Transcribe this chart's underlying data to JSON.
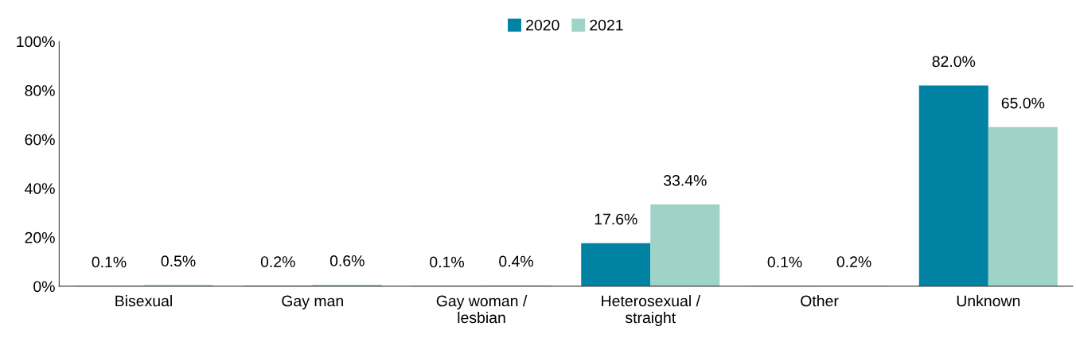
{
  "chart_data": {
    "type": "bar",
    "categories": [
      "Bisexual",
      "Gay man",
      "Gay woman /\nlesbian",
      "Heterosexual /\nstraight",
      "Other",
      "Unknown"
    ],
    "series": [
      {
        "name": "2020",
        "color": "#0083a3",
        "values": [
          0.1,
          0.2,
          0.1,
          17.6,
          0.1,
          82.0
        ],
        "value_labels": [
          "0.1%",
          "0.2%",
          "0.1%",
          "17.6%",
          "0.1%",
          "82.0%"
        ]
      },
      {
        "name": "2021",
        "color": "#9fd3c7",
        "values": [
          0.5,
          0.6,
          0.4,
          33.4,
          0.2,
          65.0
        ],
        "value_labels": [
          "0.5%",
          "0.6%",
          "0.4%",
          "33.4%",
          "0.2%",
          "65.0%"
        ]
      }
    ],
    "ylim": [
      0,
      100
    ],
    "yticks": [
      {
        "value": 0,
        "label": "0%"
      },
      {
        "value": 20,
        "label": "20%"
      },
      {
        "value": 40,
        "label": "40%"
      },
      {
        "value": 60,
        "label": "60%"
      },
      {
        "value": 80,
        "label": "80%"
      },
      {
        "value": 100,
        "label": "100%"
      }
    ],
    "grid": false,
    "legend": "top"
  }
}
